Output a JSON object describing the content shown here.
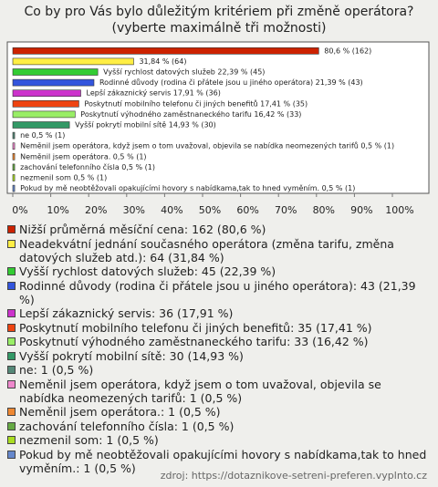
{
  "chart_data": {
    "type": "bar",
    "orientation": "horizontal",
    "title": "Co by pro Vás bylo důležitým kritériem při změně operátora? (vyberte maximálně tři možnosti)",
    "categories": [
      "Nižší průměrná měsíční cena",
      "Neadekvátní jednání současného operátora (změna tarifu, změna datových služeb atd.)",
      "Vyšší rychlost datových služeb",
      "Rodinné důvody (rodina či přátele jsou u jiného operátora)",
      "Lepší zákaznický servis",
      "Poskytnutí mobilního telefonu či jiných benefitů",
      "Poskytnutí výhodného zaměstnaneckého tarifu",
      "Vyšší pokrytí mobilní sítě",
      "ne",
      "Neměnil jsem operátora, když jsem o tom uvažoval, objevila se nabídka neomezených tarifů",
      "Neměnil jsem operátora.",
      "zachování telefonního čísla",
      "nezmenil som",
      "Pokud by mě neobtěžovali opakujícími hovory s nabídkama,tak to hned vyměním."
    ],
    "values": [
      80.6,
      31.84,
      22.39,
      21.39,
      17.91,
      17.41,
      16.42,
      14.93,
      0.5,
      0.5,
      0.5,
      0.5,
      0.5,
      0.5
    ],
    "value_labels": [
      "80,6 % (162)",
      "31,84 % (64)",
      "Vyšší rychlost datových služeb 22,39 % (45)",
      "Rodinné důvody (rodina či přátele jsou u jiného operátora) 21,39 % (43)",
      "Lepší zákaznický servis 17,91 % (36)",
      "Poskytnutí mobilního telefonu či jiných benefitů 17,41 % (35)",
      "Poskytnutí výhodného zaměstnaneckého tarifu 16,42 % (33)",
      "Vyšší pokrytí mobilní sítě 14,93 % (30)",
      "ne 0,5 % (1)",
      "Neměnil jsem operátora, když jsem o tom uvažoval, objevila se nabídka neomezených tarifů 0,5 % (1)",
      "Neměnil jsem operátora. 0,5 % (1)",
      "zachování telefonního čísla 0,5 % (1)",
      "nezmenil som 0,5 % (1)",
      "Pokud by mě neobtěžovali opakujícími hovory s nabídkama,tak to hned vyměním. 0,5 % (1)"
    ],
    "legend_labels": [
      "Nižší průměrná měsíční cena: 162 (80,6 %)",
      "Neadekvátní jednání současného operátora (změna tarifu, změna datových služeb atd.): 64 (31,84 %)",
      "Vyšší rychlost datových služeb: 45 (22,39 %)",
      "Rodinné důvody (rodina či přátele jsou u jiného operátora): 43 (21,39 %)",
      "Lepší zákaznický servis: 36 (17,91 %)",
      "Poskytnutí mobilního telefonu či jiných benefitů: 35 (17,41 %)",
      "Poskytnutí výhodného zaměstnaneckého tarifu: 33 (16,42 %)",
      "Vyšší pokrytí mobilní sítě: 30 (14,93 %)",
      "ne: 1 (0,5 %)",
      "Neměnil jsem operátora, když jsem o tom uvažoval, objevila se nabídka neomezených tarifů: 1 (0,5 %)",
      "Neměnil jsem operátora.: 1 (0,5 %)",
      "zachování telefonního čísla: 1 (0,5 %)",
      "nezmenil som: 1 (0,5 %)",
      "Pokud by mě neobtěžovali opakujícími hovory s nabídkama,tak to hned vyměním.: 1 (0,5 %)"
    ],
    "colors": [
      "#cc2200",
      "#ffee44",
      "#33cc33",
      "#3355dd",
      "#cc33cc",
      "#ee4411",
      "#99ee66",
      "#339966",
      "#558877",
      "#ee88cc",
      "#ee8833",
      "#66aa44",
      "#aadd22",
      "#6688cc"
    ],
    "xlim": [
      0,
      100
    ],
    "xticks": [
      {
        "value": 0,
        "label": "0%"
      },
      {
        "value": 10,
        "label": "10%"
      },
      {
        "value": 20,
        "label": "20%"
      },
      {
        "value": 30,
        "label": "30%"
      },
      {
        "value": 40,
        "label": "40%"
      },
      {
        "value": 50,
        "label": "50%"
      },
      {
        "value": 60,
        "label": "60%"
      },
      {
        "value": 70,
        "label": "70%"
      },
      {
        "value": 80,
        "label": "80%"
      },
      {
        "value": 90,
        "label": "90%"
      },
      {
        "value": 100,
        "label": "100%"
      }
    ],
    "source": "zdroj: https://dotaznikove-setreni-preferen.vyplnto.cz"
  }
}
